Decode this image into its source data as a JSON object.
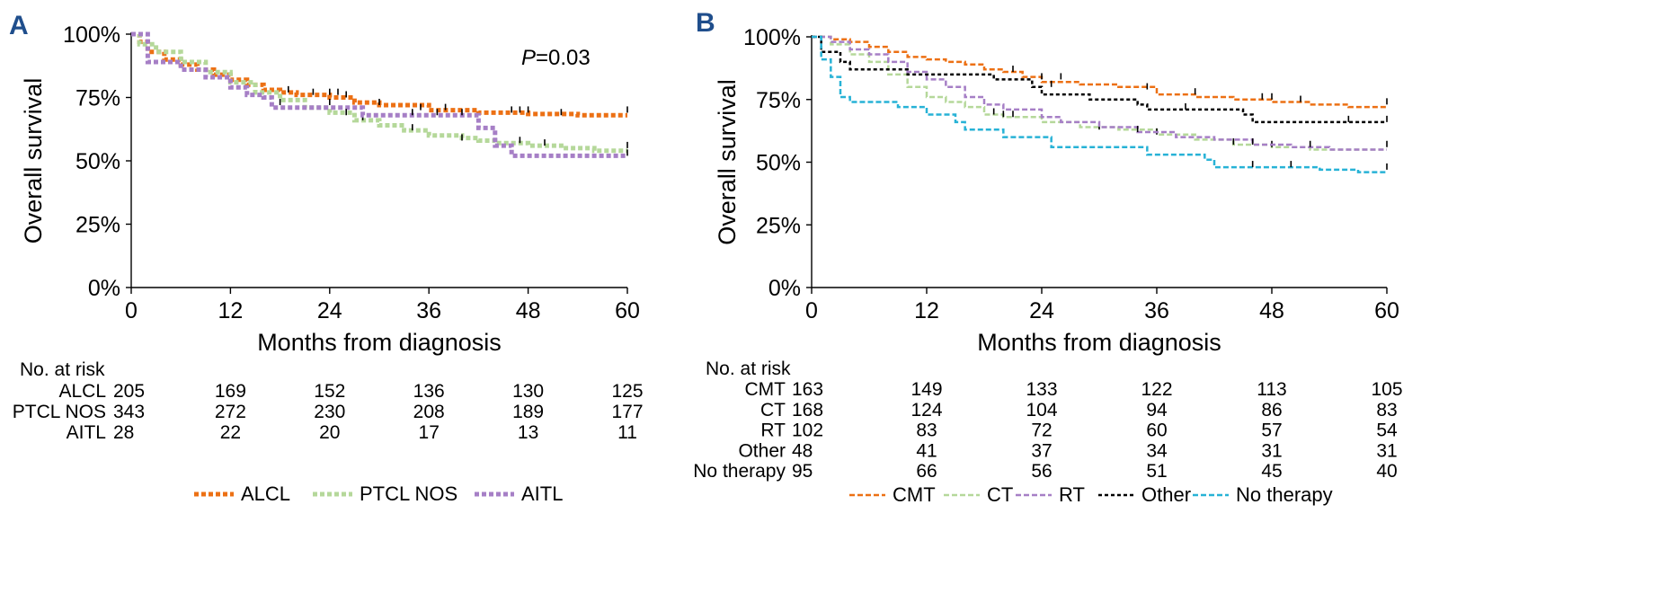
{
  "chart_data": [
    {
      "panel_label": "A",
      "type": "line",
      "ylabel": "Overall survival",
      "xlabel": "Months from diagnosis",
      "xlim": [
        0,
        60
      ],
      "ylim": [
        0,
        100
      ],
      "xticks": [
        "0",
        "12",
        "24",
        "36",
        "48",
        "60"
      ],
      "yticks": [
        "0%",
        "25%",
        "50%",
        "75%",
        "100%"
      ],
      "annotation": {
        "italic": "P",
        "text": "=0.03"
      },
      "legend": "bottom",
      "series": [
        {
          "name": "ALCL",
          "color": "#ec7014",
          "dash": "5,3",
          "width": 5,
          "points": [
            [
              0,
              100
            ],
            [
              1,
              97
            ],
            [
              2,
              93
            ],
            [
              4,
              90
            ],
            [
              6,
              88
            ],
            [
              8,
              86
            ],
            [
              10,
              84
            ],
            [
              12,
              82
            ],
            [
              14,
              80
            ],
            [
              16,
              78
            ],
            [
              18,
              77
            ],
            [
              20,
              76
            ],
            [
              24,
              75
            ],
            [
              27,
              73
            ],
            [
              30,
              72
            ],
            [
              36,
              70
            ],
            [
              42,
              69
            ],
            [
              48,
              68.5
            ],
            [
              54,
              68
            ],
            [
              60,
              68
            ]
          ],
          "censor": [
            [
              19,
              77
            ],
            [
              22,
              76
            ],
            [
              24,
              76
            ],
            [
              25,
              76
            ],
            [
              26,
              75
            ],
            [
              30,
              72
            ],
            [
              35,
              70
            ],
            [
              38,
              70
            ],
            [
              46,
              69
            ],
            [
              47,
              69
            ],
            [
              48,
              69
            ],
            [
              52,
              68
            ],
            [
              60,
              69
            ]
          ]
        },
        {
          "name": "PTCL NOS",
          "color": "#b5d89a",
          "dash": "5,3",
          "width": 5,
          "points": [
            [
              0,
              100
            ],
            [
              1,
              96
            ],
            [
              3,
              93
            ],
            [
              6,
              89
            ],
            [
              9,
              85
            ],
            [
              12,
              81
            ],
            [
              15,
              77
            ],
            [
              18,
              74
            ],
            [
              21,
              71
            ],
            [
              24,
              69
            ],
            [
              27,
              66
            ],
            [
              30,
              64
            ],
            [
              33,
              62
            ],
            [
              36,
              60
            ],
            [
              40,
              59
            ],
            [
              42,
              58
            ],
            [
              44,
              57
            ],
            [
              48,
              56
            ],
            [
              52,
              55
            ],
            [
              56,
              54
            ],
            [
              60,
              54
            ]
          ],
          "censor": [
            [
              28,
              66
            ],
            [
              34,
              62
            ],
            [
              40,
              58
            ],
            [
              47,
              57
            ],
            [
              50,
              56
            ],
            [
              60,
              55
            ]
          ]
        },
        {
          "name": "AITL",
          "color": "#a67fc6",
          "dash": "5,3",
          "width": 5,
          "points": [
            [
              0,
              100
            ],
            [
              2,
              89
            ],
            [
              6,
              86
            ],
            [
              9,
              83
            ],
            [
              12,
              79
            ],
            [
              14,
              76
            ],
            [
              16,
              75
            ],
            [
              17,
              71
            ],
            [
              24,
              71
            ],
            [
              28,
              68
            ],
            [
              41,
              68
            ],
            [
              42,
              63
            ],
            [
              44,
              56
            ],
            [
              46,
              52
            ],
            [
              60,
              52
            ]
          ],
          "censor": [
            [
              18,
              72
            ],
            [
              24,
              72
            ],
            [
              26,
              68
            ],
            [
              34,
              68
            ],
            [
              37,
              68
            ],
            [
              40,
              68
            ],
            [
              60,
              52
            ]
          ]
        }
      ],
      "risk_table": {
        "title": "No. at risk",
        "rows": [
          {
            "label": "ALCL",
            "values": [
              "205",
              "169",
              "152",
              "136",
              "130",
              "125"
            ]
          },
          {
            "label": "PTCL NOS",
            "values": [
              "343",
              "272",
              "230",
              "208",
              "189",
              "177"
            ]
          },
          {
            "label": "AITL",
            "values": [
              "28",
              "22",
              "20",
              "17",
              "13",
              "11"
            ]
          }
        ]
      }
    },
    {
      "panel_label": "B",
      "type": "line",
      "ylabel": "Overall survival",
      "xlabel": "Months from diagnosis",
      "xlim": [
        0,
        60
      ],
      "ylim": [
        0,
        100
      ],
      "xticks": [
        "0",
        "12",
        "24",
        "36",
        "48",
        "60"
      ],
      "yticks": [
        "0%",
        "25%",
        "50%",
        "75%",
        "100%"
      ],
      "legend": "bottom",
      "series": [
        {
          "name": "CMT",
          "color": "#ec7014",
          "dash": "6,3",
          "width": 2.5,
          "points": [
            [
              0,
              100
            ],
            [
              2,
              99
            ],
            [
              4,
              98
            ],
            [
              6,
              96
            ],
            [
              8,
              94
            ],
            [
              10,
              92
            ],
            [
              12,
              91
            ],
            [
              14,
              90
            ],
            [
              16,
              89
            ],
            [
              18,
              87
            ],
            [
              20,
              86
            ],
            [
              22,
              84
            ],
            [
              24,
              82
            ],
            [
              28,
              81
            ],
            [
              32,
              80
            ],
            [
              36,
              77
            ],
            [
              40,
              76
            ],
            [
              44,
              75
            ],
            [
              48,
              74
            ],
            [
              52,
              73
            ],
            [
              56,
              72
            ],
            [
              60,
              72
            ]
          ],
          "censor": [
            [
              21,
              86
            ],
            [
              24,
              83
            ],
            [
              26,
              83
            ],
            [
              35,
              79
            ],
            [
              40,
              77
            ],
            [
              47,
              75
            ],
            [
              48,
              75
            ],
            [
              51,
              74
            ],
            [
              60,
              73
            ]
          ]
        },
        {
          "name": "CT",
          "color": "#b5d89a",
          "dash": "6,3",
          "width": 2.5,
          "points": [
            [
              0,
              100
            ],
            [
              2,
              97
            ],
            [
              4,
              93
            ],
            [
              6,
              90
            ],
            [
              8,
              85
            ],
            [
              10,
              80
            ],
            [
              12,
              76
            ],
            [
              14,
              74
            ],
            [
              16,
              72
            ],
            [
              18,
              69
            ],
            [
              20,
              68
            ],
            [
              24,
              66
            ],
            [
              28,
              64
            ],
            [
              32,
              63
            ],
            [
              36,
              61
            ],
            [
              40,
              59
            ],
            [
              44,
              57
            ],
            [
              48,
              56
            ],
            [
              52,
              55
            ],
            [
              56,
              55
            ],
            [
              60,
              55
            ]
          ],
          "censor": [
            [
              19,
              69
            ],
            [
              20,
              68
            ],
            [
              21,
              68
            ],
            [
              30,
              63
            ],
            [
              36,
              61
            ],
            [
              44,
              57
            ],
            [
              48,
              56
            ]
          ]
        },
        {
          "name": "RT",
          "color": "#a67fc6",
          "dash": "6,3",
          "width": 2.5,
          "points": [
            [
              0,
              100
            ],
            [
              2,
              98
            ],
            [
              4,
              95
            ],
            [
              6,
              93
            ],
            [
              8,
              90
            ],
            [
              10,
              86
            ],
            [
              12,
              83
            ],
            [
              14,
              80
            ],
            [
              16,
              76
            ],
            [
              18,
              73
            ],
            [
              20,
              71
            ],
            [
              24,
              68
            ],
            [
              26,
              66
            ],
            [
              30,
              64
            ],
            [
              34,
              62
            ],
            [
              38,
              60
            ],
            [
              42,
              59
            ],
            [
              46,
              57
            ],
            [
              50,
              56
            ],
            [
              54,
              55
            ],
            [
              60,
              55
            ]
          ],
          "censor": [
            [
              34,
              62
            ],
            [
              46,
              57
            ],
            [
              52,
              56
            ],
            [
              60,
              56
            ]
          ]
        },
        {
          "name": "Other",
          "color": "#000000",
          "dash": "4,3",
          "width": 2.5,
          "points": [
            [
              0,
              100
            ],
            [
              1,
              94
            ],
            [
              3,
              90
            ],
            [
              4,
              87
            ],
            [
              9,
              87
            ],
            [
              10,
              85
            ],
            [
              18,
              85
            ],
            [
              19,
              83
            ],
            [
              22,
              83
            ],
            [
              23,
              80
            ],
            [
              24,
              77
            ],
            [
              28,
              77
            ],
            [
              29,
              75
            ],
            [
              33,
              75
            ],
            [
              34,
              73
            ],
            [
              35,
              71
            ],
            [
              44,
              71
            ],
            [
              45,
              69
            ],
            [
              46,
              66
            ],
            [
              60,
              66
            ]
          ],
          "censor": [
            [
              25,
              80
            ],
            [
              39,
              71
            ],
            [
              56,
              66
            ],
            [
              60,
              66
            ]
          ]
        },
        {
          "name": "No therapy",
          "color": "#27b2d6",
          "dash": "6,3",
          "width": 2.5,
          "points": [
            [
              0,
              100
            ],
            [
              1,
              91
            ],
            [
              2,
              84
            ],
            [
              3,
              76
            ],
            [
              4,
              74
            ],
            [
              8,
              74
            ],
            [
              9,
              72
            ],
            [
              11,
              72
            ],
            [
              12,
              69
            ],
            [
              14,
              69
            ],
            [
              15,
              66
            ],
            [
              16,
              63
            ],
            [
              19,
              63
            ],
            [
              20,
              60
            ],
            [
              24,
              60
            ],
            [
              25,
              56
            ],
            [
              34,
              56
            ],
            [
              35,
              53
            ],
            [
              40,
              53
            ],
            [
              41,
              51
            ],
            [
              42,
              48
            ],
            [
              52,
              48
            ],
            [
              53,
              47
            ],
            [
              57,
              46
            ],
            [
              60,
              46
            ]
          ],
          "censor": [
            [
              46,
              48
            ],
            [
              50,
              48
            ],
            [
              60,
              47
            ]
          ]
        }
      ],
      "risk_table": {
        "title": "No. at risk",
        "rows": [
          {
            "label": "CMT",
            "values": [
              "163",
              "149",
              "133",
              "122",
              "113",
              "105"
            ]
          },
          {
            "label": "CT",
            "values": [
              "168",
              "124",
              "104",
              "94",
              "86",
              "83"
            ]
          },
          {
            "label": "RT",
            "values": [
              "102",
              "83",
              "72",
              "60",
              "57",
              "54"
            ]
          },
          {
            "label": "Other",
            "values": [
              "48",
              "41",
              "37",
              "34",
              "31",
              "31"
            ]
          },
          {
            "label": "No therapy",
            "values": [
              "95",
              "66",
              "56",
              "51",
              "45",
              "40"
            ]
          }
        ]
      }
    }
  ]
}
